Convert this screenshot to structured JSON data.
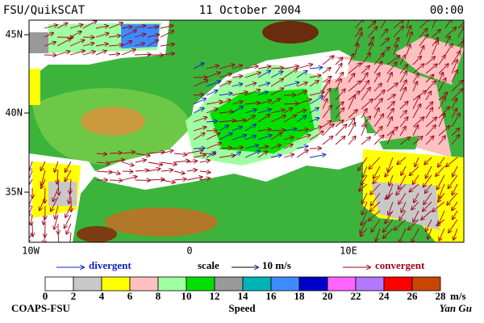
{
  "header": {
    "product": "FSU/QuikSCAT",
    "date": "11 October 2004",
    "time": "00:00"
  },
  "latitude_labels": [
    "45N",
    "40N",
    "35N"
  ],
  "longitude_labels": [
    "10W",
    "0",
    "10E"
  ],
  "legend": {
    "divergent": "divergent",
    "scale": "scale",
    "scale_value": "10 m/s",
    "convergent": "convergent"
  },
  "colorbar": {
    "colors": [
      "#ffffff",
      "#c8c8c8",
      "#ffff00",
      "#ffc0c0",
      "#a0ffa0",
      "#00e000",
      "#999999",
      "#00b4b4",
      "#3c8cff",
      "#0000c8",
      "#ff64ff",
      "#b478ff",
      "#ff0000",
      "#c84600",
      "#000000"
    ],
    "labels": [
      "0",
      "2",
      "4",
      "6",
      "8",
      "10",
      "12",
      "14",
      "16",
      "18",
      "20",
      "22",
      "24",
      "26",
      "28"
    ],
    "unit": "m/s",
    "title": "Speed"
  },
  "footer": {
    "credit": "COAPS-FSU",
    "author": "Yan Gu"
  }
}
